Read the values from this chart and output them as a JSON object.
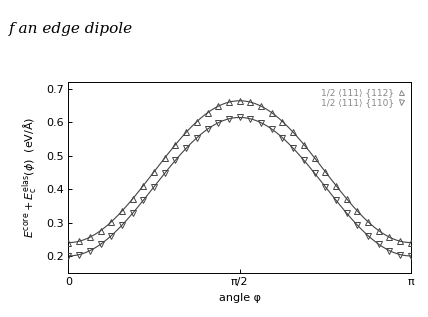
{
  "title_text": "f an edge dipole",
  "xlabel": "angle φ",
  "xlim": [
    0,
    3.14159265
  ],
  "ylim": [
    0.15,
    0.72
  ],
  "yticks": [
    0.2,
    0.3,
    0.4,
    0.5,
    0.6,
    0.7
  ],
  "xtick_positions": [
    0,
    1.5707963,
    3.14159265
  ],
  "xtick_labels": [
    "0",
    "π/2",
    "π"
  ],
  "series": [
    {
      "label": "1/2 ⟨111⟩ {112}",
      "marker": "^",
      "color": "#444444",
      "A": 0.665,
      "B": 0.24,
      "n_markers": 33
    },
    {
      "label": "1/2 ⟨111⟩ {110}",
      "marker": "v",
      "color": "#444444",
      "A": 0.615,
      "B": 0.2,
      "n_markers": 33
    }
  ],
  "background_color": "#ffffff",
  "legend_fontsize": 6.5,
  "axis_fontsize": 8,
  "tick_fontsize": 8,
  "title_fontsize": 11,
  "fig_width": 4.28,
  "fig_height": 3.17,
  "dpi": 100
}
